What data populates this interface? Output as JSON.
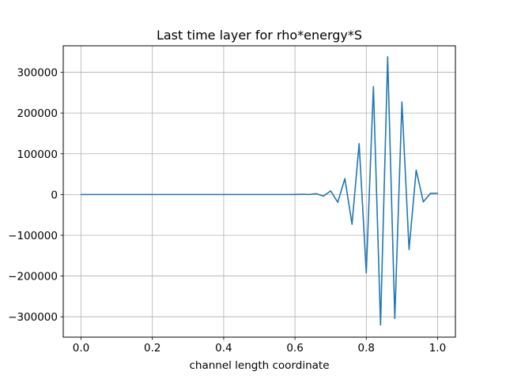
{
  "chart_data": {
    "type": "line",
    "title": "Last time layer for rho*energy*S",
    "xlabel": "channel length coordinate",
    "ylabel": "",
    "xlim": [
      -0.05,
      1.05
    ],
    "ylim": [
      -350000,
      365000
    ],
    "xticks": [
      0.0,
      0.2,
      0.4,
      0.6,
      0.8,
      1.0
    ],
    "xtick_labels": [
      "0.0",
      "0.2",
      "0.4",
      "0.6",
      "0.8",
      "1.0"
    ],
    "yticks": [
      -300000,
      -200000,
      -100000,
      0,
      100000,
      200000,
      300000
    ],
    "ytick_labels": [
      "−300000",
      "−200000",
      "−100000",
      "0",
      "100000",
      "200000",
      "300000"
    ],
    "grid": true,
    "series": [
      {
        "color": "#1f77b4",
        "x": [
          0.0,
          0.02,
          0.04,
          0.06,
          0.08,
          0.1,
          0.12,
          0.14,
          0.16,
          0.18,
          0.2,
          0.22,
          0.24,
          0.26,
          0.28,
          0.3,
          0.32,
          0.34,
          0.36,
          0.38,
          0.4,
          0.42,
          0.44,
          0.46,
          0.48,
          0.5,
          0.52,
          0.54,
          0.56,
          0.58,
          0.6,
          0.62,
          0.64,
          0.66,
          0.68,
          0.7,
          0.72,
          0.74,
          0.76,
          0.78,
          0.8,
          0.82,
          0.84,
          0.86,
          0.88,
          0.9,
          0.92,
          0.94,
          0.96,
          0.98,
          1.0
        ],
        "y": [
          0,
          0,
          0,
          0,
          0,
          0,
          0,
          0,
          0,
          0,
          0,
          0,
          0,
          0,
          0,
          0,
          0,
          0,
          0,
          0,
          0,
          0,
          0,
          0,
          0,
          0,
          0,
          0,
          0,
          0,
          200,
          500,
          0,
          2000,
          -4000,
          9000,
          -19000,
          39000,
          -73000,
          125000,
          -192000,
          265000,
          -320000,
          338000,
          -304000,
          227000,
          -135000,
          60000,
          -18000,
          3000,
          3000
        ]
      }
    ]
  }
}
